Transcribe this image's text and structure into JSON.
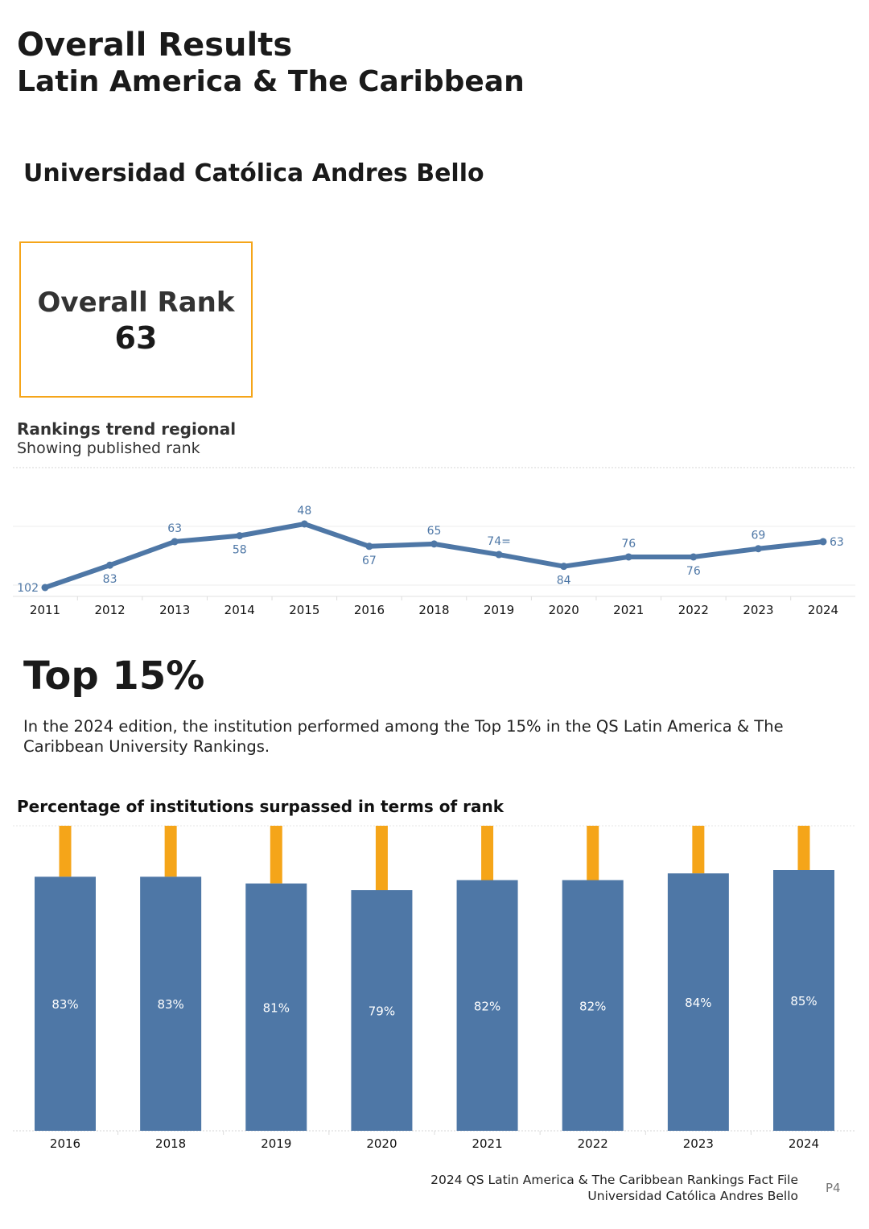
{
  "header": {
    "title_line1": "Overall Results",
    "title_line2": "Latin America & The Caribbean"
  },
  "institution": "Universidad Católica Andres Bello",
  "rank_box": {
    "label": "Overall Rank",
    "value": "63",
    "border_color": "#f5a519"
  },
  "trend": {
    "title": "Rankings trend regional",
    "subtitle": "Showing published rank"
  },
  "top": {
    "heading": "Top 15%",
    "description": "In the 2024 edition, the institution performed among the Top 15% in the QS Latin America & The Caribbean University Rankings."
  },
  "bars": {
    "title": "Percentage of institutions surpassed in terms of rank"
  },
  "footer": {
    "line1": "2024 QS Latin America & The Caribbean Rankings Fact File",
    "line2": "Universidad Católica Andres Bello",
    "page": "P4"
  },
  "colors": {
    "series": "#4e77a6",
    "accent": "#f5a519"
  },
  "chart_data": [
    {
      "type": "line",
      "title": "Rankings trend regional",
      "subtitle": "Showing published rank",
      "categories": [
        "2011",
        "2012",
        "2013",
        "2014",
        "2015",
        "2016",
        "2018",
        "2019",
        "2020",
        "2021",
        "2022",
        "2023",
        "2024"
      ],
      "values": [
        102,
        83,
        63,
        58,
        48,
        67,
        65,
        74,
        84,
        76,
        76,
        69,
        63
      ],
      "labels": [
        "102",
        "83",
        "63",
        "58",
        "48",
        "67",
        "65",
        "74=",
        "84",
        "76",
        "76",
        "69",
        "63"
      ],
      "y_inverted": true,
      "grid": true
    },
    {
      "type": "bar",
      "title": "Percentage of institutions surpassed in terms of rank",
      "categories": [
        "2016",
        "2018",
        "2019",
        "2020",
        "2021",
        "2022",
        "2023",
        "2024"
      ],
      "values": [
        83,
        83,
        81,
        79,
        82,
        82,
        84,
        85
      ],
      "labels": [
        "83%",
        "83%",
        "81%",
        "79%",
        "82%",
        "82%",
        "84%",
        "85%"
      ],
      "ylim": [
        0,
        100
      ],
      "stacked_remainder_color": "#f5a519"
    }
  ]
}
